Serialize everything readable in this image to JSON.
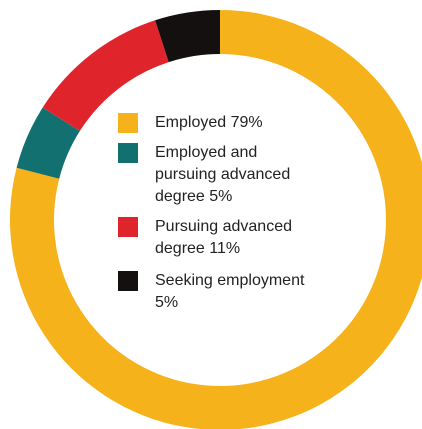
{
  "chart_data": {
    "type": "pie",
    "donut": true,
    "title": "",
    "slices": [
      {
        "name": "Employed",
        "value": 79,
        "label": "Employed 79%",
        "color": "#F5B21B"
      },
      {
        "name": "Employed and pursuing advanced degree",
        "value": 5,
        "label": "Employed and\npursuing advanced\ndegree 5%",
        "color": "#127070"
      },
      {
        "name": "Pursuing advanced degree",
        "value": 11,
        "label": "Pursuing advanced\ndegree 11%",
        "color": "#E0242B"
      },
      {
        "name": "Seeking employment",
        "value": 5,
        "label": "Seeking employment\n5%",
        "color": "#141010"
      }
    ],
    "legend_position": "center"
  }
}
